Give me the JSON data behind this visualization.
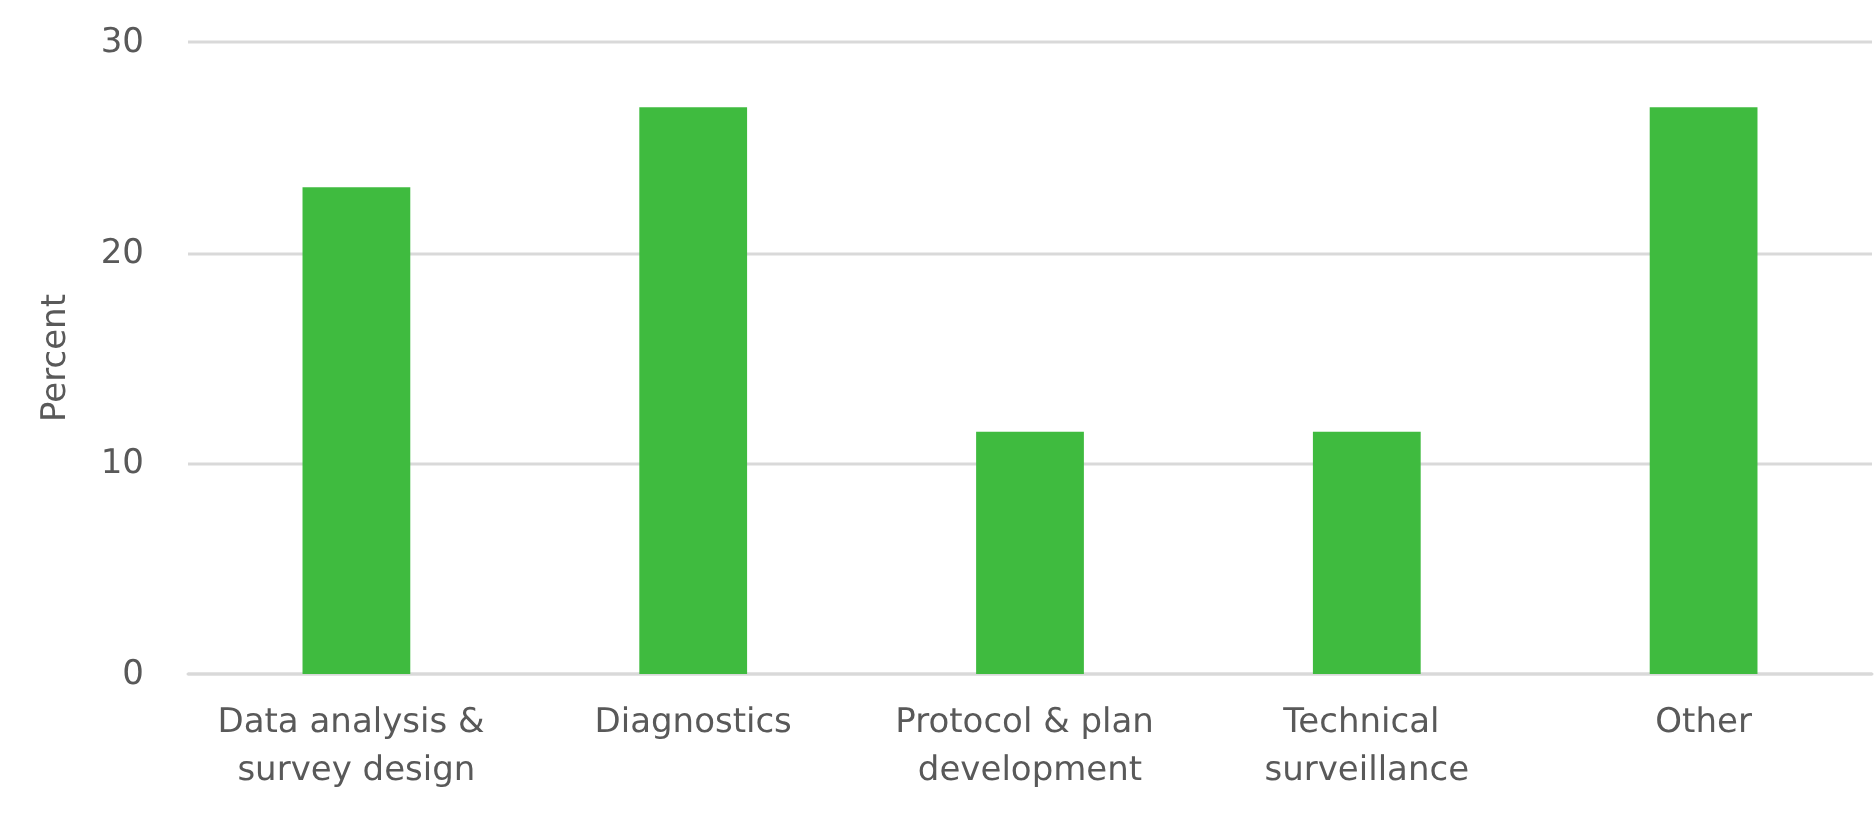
{
  "chart_data": {
    "type": "bar",
    "ylabel": "Percent",
    "categories": [
      "Data analysis & survey design",
      "Diagnostics",
      "Protocol & plan development",
      "Technical surveillance",
      "Other"
    ],
    "values": [
      23.1,
      26.9,
      11.5,
      11.5,
      26.9
    ],
    "color": "#3fbb3f",
    "ylim": [
      0,
      30
    ],
    "yticks": [
      0,
      10,
      20,
      30
    ],
    "grid": "y"
  }
}
